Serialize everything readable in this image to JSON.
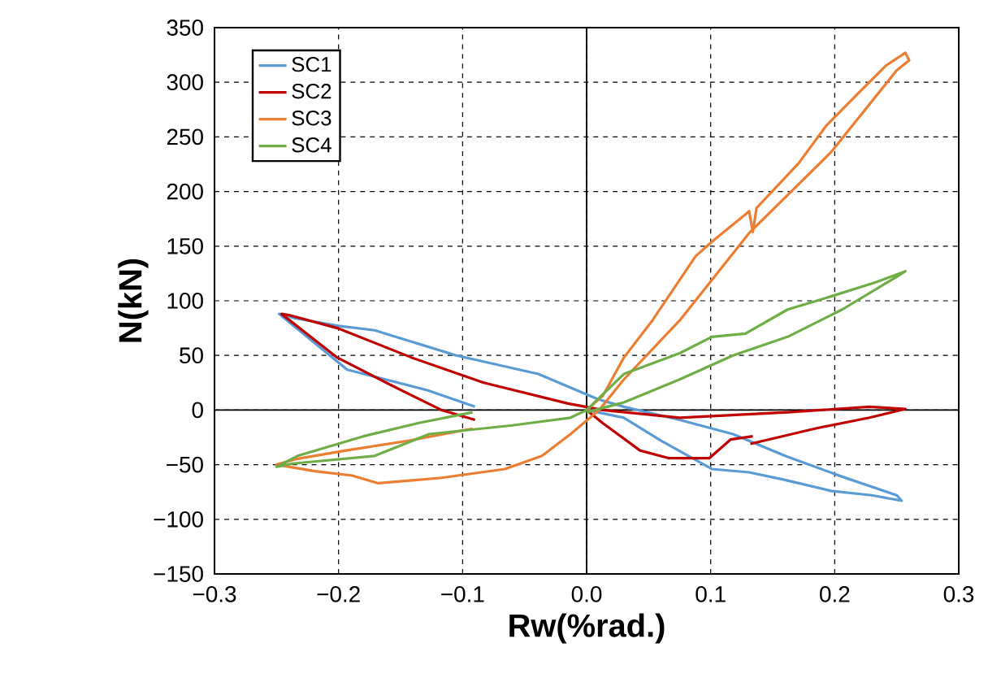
{
  "chart_data": {
    "type": "line",
    "xlabel": "Rw(%rad.)",
    "ylabel": "N(kN)",
    "xlim": [
      -0.3,
      0.3
    ],
    "ylim": [
      -150,
      350
    ],
    "xticks": [
      {
        "value": -0.3,
        "label": "−0.3"
      },
      {
        "value": -0.2,
        "label": "−0.2"
      },
      {
        "value": -0.1,
        "label": "−0.1"
      },
      {
        "value": 0,
        "label": "0.0"
      },
      {
        "value": 0.1,
        "label": "0.1"
      },
      {
        "value": 0.2,
        "label": "0.2"
      },
      {
        "value": 0.3,
        "label": "0.3"
      }
    ],
    "yticks": [
      {
        "value": -150,
        "label": "−150"
      },
      {
        "value": -100,
        "label": "−100"
      },
      {
        "value": -50,
        "label": "−50"
      },
      0,
      50,
      100,
      150,
      200,
      250,
      300,
      350
    ],
    "grid": true,
    "legend": "top left",
    "marker": "none",
    "line_style": "solid",
    "series": [
      {
        "name": "SC1",
        "color": "#5b9bd5",
        "x": [
          0,
          0.03,
          0.06,
          0.101,
          0.131,
          0.16,
          0.197,
          0.23,
          0.254,
          0.25,
          0.206,
          0.16,
          0.118,
          0.075,
          0.03,
          0.009,
          -0.039,
          -0.105,
          -0.171,
          -0.2,
          -0.235,
          -0.248,
          -0.193,
          -0.128,
          -0.09
        ],
        "values": [
          0,
          -7,
          -28,
          -54,
          -57,
          -64,
          -74,
          -78,
          -83,
          -78,
          -61,
          -42,
          -22,
          -9,
          3,
          10,
          33,
          50,
          73,
          77,
          84,
          88,
          37,
          18,
          3
        ]
      },
      {
        "name": "SC2",
        "color": "#c00000",
        "x": [
          -0.09,
          -0.117,
          -0.158,
          -0.201,
          -0.246,
          -0.24,
          -0.201,
          -0.141,
          -0.083,
          -0.015,
          0.013,
          0.075,
          0.162,
          0.228,
          0.257,
          0.228,
          0.184,
          0.132,
          null,
          0.134,
          0.116,
          0.099,
          0.066,
          0.043,
          0.013,
          0
        ],
        "values": [
          -9,
          0,
          23,
          48,
          88,
          87,
          75,
          48,
          25,
          6,
          0,
          -7,
          -2,
          3,
          1,
          -7,
          -17,
          -31,
          null,
          -24,
          -27,
          -44,
          -44,
          -37,
          -12,
          0
        ]
      },
      {
        "name": "SC3",
        "color": "#ed7d31",
        "x": [
          0,
          0.013,
          0.03,
          0.053,
          0.088,
          0.103,
          0.128,
          0.131,
          0.134,
          0.137,
          0.171,
          0.193,
          0.219,
          0.241,
          0.257,
          0.26,
          0.25,
          0.197,
          0.131,
          0.075,
          0.03,
          0.01,
          -0.013,
          -0.036,
          -0.066,
          -0.117,
          -0.168,
          -0.189,
          -0.219,
          -0.245,
          -0.25,
          -0.235,
          -0.194,
          -0.143,
          -0.092
        ],
        "values": [
          0,
          13,
          48,
          82,
          141,
          156,
          179,
          182,
          163,
          185,
          226,
          260,
          290,
          315,
          327,
          320,
          311,
          236,
          162,
          82,
          28,
          0,
          -22,
          -42,
          -54,
          -62,
          -67,
          -60,
          -56,
          -51,
          -50,
          -45,
          -37,
          -28,
          -17
        ]
      },
      {
        "name": "SC4",
        "color": "#70ad47",
        "x": [
          -0.092,
          -0.136,
          -0.18,
          -0.233,
          -0.25,
          -0.237,
          -0.171,
          -0.127,
          -0.06,
          -0.013,
          0,
          0.03,
          0.075,
          0.101,
          0.128,
          0.162,
          0.197,
          0.233,
          0.257,
          0.25,
          0.206,
          0.162,
          0.118,
          0.075,
          0.03,
          0
        ],
        "values": [
          -2,
          -12,
          -24,
          -42,
          -52,
          -49,
          -42,
          -22,
          -14,
          -7,
          0,
          33,
          52,
          67,
          70,
          92,
          104,
          117,
          127,
          122,
          92,
          67,
          50,
          28,
          7,
          -2
        ]
      }
    ]
  }
}
